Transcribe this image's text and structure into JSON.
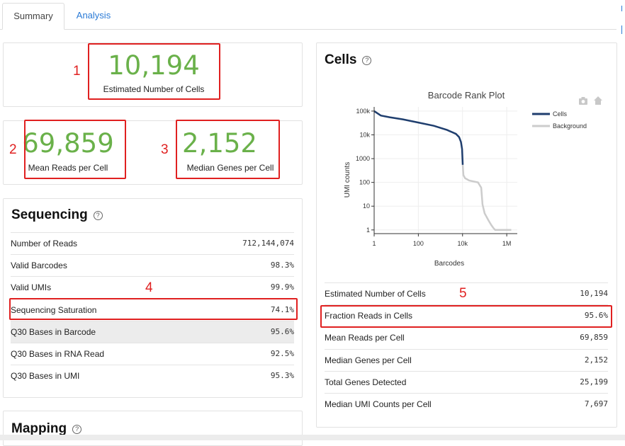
{
  "tabs": [
    {
      "label": "Summary"
    },
    {
      "label": "Analysis"
    }
  ],
  "summary": {
    "estimated_cells": {
      "value": "10,194",
      "label": "Estimated Number of Cells",
      "annotation": "1"
    },
    "mean_reads": {
      "value": "69,859",
      "label": "Mean Reads per Cell",
      "annotation": "2"
    },
    "median_genes": {
      "value": "2,152",
      "label": "Median Genes per Cell",
      "annotation": "3"
    }
  },
  "sequencing": {
    "title": "Sequencing",
    "help_icon": "question-circle-icon",
    "annotation": "4",
    "rows": [
      {
        "label": "Number of Reads",
        "value": "712,144,074"
      },
      {
        "label": "Valid Barcodes",
        "value": "98.3%"
      },
      {
        "label": "Valid UMIs",
        "value": "99.9%"
      },
      {
        "label": "Sequencing Saturation",
        "value": "74.1%"
      },
      {
        "label": "Q30 Bases in Barcode",
        "value": "95.6%"
      },
      {
        "label": "Q30 Bases in RNA Read",
        "value": "92.5%"
      },
      {
        "label": "Q30 Bases in UMI",
        "value": "95.3%"
      }
    ]
  },
  "mapping": {
    "title": "Mapping",
    "help_icon": "question-circle-icon"
  },
  "cells": {
    "title": "Cells",
    "help_icon": "question-circle-icon",
    "annotation": "5",
    "rows": [
      {
        "label": "Estimated Number of Cells",
        "value": "10,194"
      },
      {
        "label": "Fraction Reads in Cells",
        "value": "95.6%"
      },
      {
        "label": "Mean Reads per Cell",
        "value": "69,859"
      },
      {
        "label": "Median Genes per Cell",
        "value": "2,152"
      },
      {
        "label": "Total Genes Detected",
        "value": "25,199"
      },
      {
        "label": "Median UMI Counts per Cell",
        "value": "7,697"
      }
    ]
  },
  "colors": {
    "accent_green": "#6ab14a",
    "annotation_red": "#e02020",
    "cells_line": "#1f3e6e",
    "background_line": "#cccccc",
    "link_blue": "#2a7ad6"
  },
  "chart_data": {
    "type": "line",
    "title": "Barcode Rank Plot",
    "xlabel": "Barcodes",
    "ylabel": "UMI counts",
    "xscale": "log",
    "yscale": "log",
    "xlim": [
      1,
      3000000
    ],
    "ylim": [
      0.7,
      150000
    ],
    "xticks": [
      {
        "v": 1,
        "label": "1"
      },
      {
        "v": 100,
        "label": "100"
      },
      {
        "v": 10000,
        "label": "10k"
      },
      {
        "v": 1000000,
        "label": "1M"
      }
    ],
    "yticks": [
      {
        "v": 1,
        "label": "1"
      },
      {
        "v": 10,
        "label": "10"
      },
      {
        "v": 100,
        "label": "100"
      },
      {
        "v": 1000,
        "label": "1000"
      },
      {
        "v": 10000,
        "label": "10k"
      },
      {
        "v": 100000,
        "label": "100k"
      }
    ],
    "legend": [
      "Cells",
      "Background"
    ],
    "legend_position": "top-right",
    "toolbar_icons": [
      "camera-icon",
      "home-icon"
    ],
    "series": [
      {
        "name": "Cells",
        "color": "#1f3e6e",
        "points": [
          [
            1,
            100000
          ],
          [
            2,
            65000
          ],
          [
            5,
            55000
          ],
          [
            20,
            45000
          ],
          [
            100,
            33000
          ],
          [
            500,
            24000
          ],
          [
            2000,
            16000
          ],
          [
            5000,
            11000
          ],
          [
            7000,
            8000
          ],
          [
            8500,
            5000
          ],
          [
            9500,
            2500
          ],
          [
            10194,
            550
          ]
        ]
      },
      {
        "name": "Background",
        "color": "#cccccc",
        "points": [
          [
            10194,
            550
          ],
          [
            11000,
            200
          ],
          [
            13000,
            150
          ],
          [
            20000,
            120
          ],
          [
            50000,
            100
          ],
          [
            70000,
            60
          ],
          [
            80000,
            12
          ],
          [
            100000,
            5
          ],
          [
            150000,
            2.5
          ],
          [
            200000,
            1.6
          ],
          [
            250000,
            1.2
          ],
          [
            300000,
            1
          ],
          [
            400000,
            1
          ],
          [
            500000,
            1
          ],
          [
            1000000,
            1
          ],
          [
            1600000,
            1
          ]
        ]
      }
    ]
  }
}
